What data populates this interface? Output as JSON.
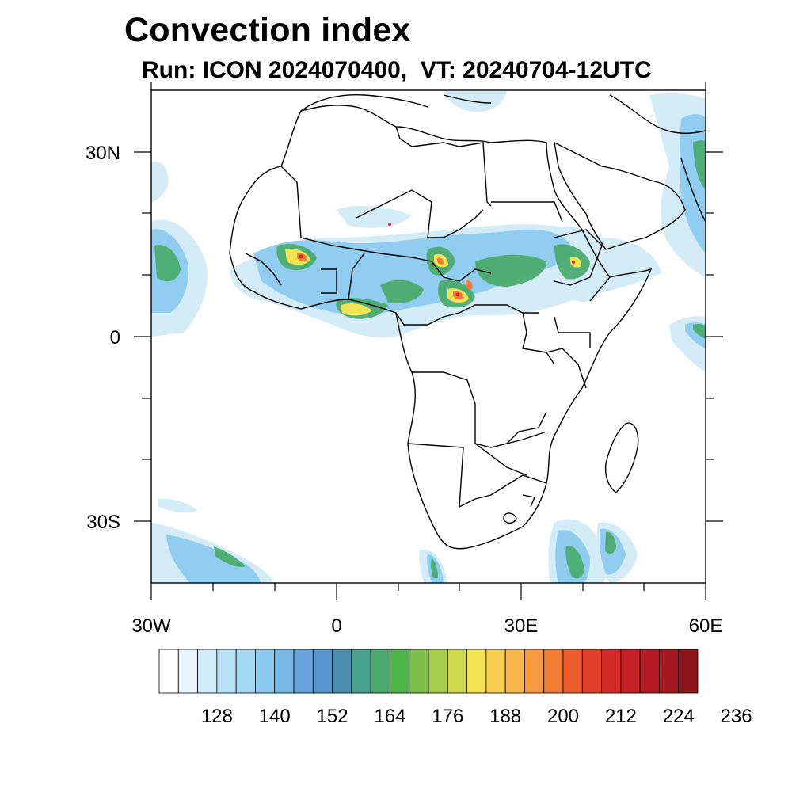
{
  "title": "Convection index",
  "subtitle": "Run: ICON 2024070400,  VT: 20240704-12UTC",
  "axes": {
    "lat_labels": [
      "30N",
      "0",
      "30S"
    ],
    "lon_labels": [
      "30W",
      "0",
      "30E",
      "60E"
    ]
  },
  "colorbar": {
    "labels": [
      "128",
      "140",
      "152",
      "164",
      "176",
      "188",
      "200",
      "212",
      "224",
      "236"
    ],
    "colors": [
      "#ffffff",
      "#e9f5fc",
      "#d2ebf8",
      "#b9e2f6",
      "#a2d8f3",
      "#8ccbef",
      "#78b7e6",
      "#67a5dc",
      "#5895cd",
      "#4c8eae",
      "#48a28f",
      "#4aaa6b",
      "#4eb649",
      "#7cbf4a",
      "#a9cd4c",
      "#d0d94d",
      "#f2e352",
      "#f7cf52",
      "#f8b64d",
      "#f79a40",
      "#f27b36",
      "#eb5d2f",
      "#e14129",
      "#d52b28",
      "#c62027",
      "#b61a24",
      "#a41820",
      "#8e161b"
    ]
  },
  "map": {
    "region": "Africa and surroundings, 40S–40N, 30W–60E",
    "field": "convection index"
  }
}
